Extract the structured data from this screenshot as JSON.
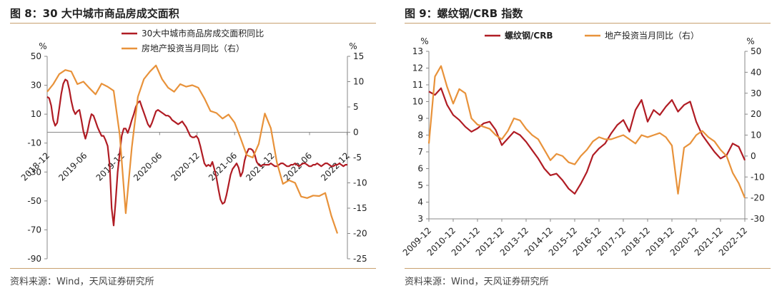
{
  "panels": {
    "left": {
      "title": "图 8：30 大中城市商品房成交面积",
      "source": "资料来源：Wind，天风证券研究所"
    },
    "right": {
      "title": "图 9：螺纹钢/CRB 指数",
      "source": "资料来源：Wind，天风证券研究所"
    }
  },
  "chart_data": [
    {
      "type": "line",
      "title": "图 8：30 大中城市商品房成交面积",
      "y_left": {
        "unit": "%",
        "ticks": [
          50,
          30,
          10,
          -10,
          -30,
          -50,
          -70,
          -90
        ],
        "range": [
          -90,
          50
        ]
      },
      "y_right": {
        "unit": "%",
        "ticks": [
          15,
          10,
          5,
          0,
          -5,
          -10,
          -15,
          -20,
          -25
        ],
        "range": [
          -25,
          15
        ]
      },
      "x_ticks": [
        "2018-12",
        "2019-06",
        "2019-12",
        "2020-06",
        "2020-12",
        "2021-06",
        "2021-12",
        "2022-06",
        "2022-12"
      ],
      "legend": {
        "position": "top",
        "entries": [
          "30大中城市商品房成交面积同比",
          "房地产投资当月同比（右）"
        ]
      },
      "grid": false,
      "series": [
        {
          "name": "30大中城市商品房成交面积同比",
          "axis": "left",
          "color": "#b01c24",
          "x": [
            0,
            0.33,
            0.66,
            1,
            1.33,
            1.66,
            2,
            2.33,
            2.66,
            3,
            3.33,
            3.66,
            4,
            4.33,
            4.66,
            5,
            5.33,
            5.66,
            6,
            6.33,
            6.66,
            7,
            7.33,
            7.66,
            8,
            8.33,
            8.66,
            9,
            9.33,
            9.66,
            10,
            10.33,
            10.66,
            11,
            11.33,
            11.66,
            12,
            12.33,
            12.66,
            13,
            13.33,
            13.66,
            14,
            14.33,
            14.66,
            15,
            15.33,
            15.66,
            16,
            16.33,
            16.66,
            17,
            17.33,
            17.66,
            18,
            18.33,
            18.66,
            19,
            19.33,
            19.66,
            20,
            20.33,
            20.66,
            21,
            21.33,
            21.66,
            22,
            22.33,
            22.66,
            23,
            23.33,
            23.66,
            24,
            24.33,
            24.66,
            25,
            25.33,
            25.66,
            26,
            26.33,
            26.66,
            27,
            27.33,
            27.66,
            28,
            28.33,
            28.66,
            29,
            29.33,
            29.66,
            30,
            30.33,
            30.66,
            31,
            31.33,
            31.66,
            32,
            32.33,
            32.66,
            33,
            33.33,
            33.66,
            34,
            34.33,
            34.66,
            35,
            35.33,
            35.66,
            36,
            36.33,
            36.66,
            37,
            37.33,
            37.66,
            38,
            38.33,
            38.66,
            39,
            39.33,
            39.66,
            40,
            40.33,
            40.66,
            41,
            41.33,
            41.66,
            42,
            42.33,
            42.66,
            43,
            43.33,
            43.66,
            44,
            44.33,
            44.66,
            45,
            45.33,
            45.66,
            46,
            46.33,
            46.66,
            47,
            47.33,
            47.66,
            48,
            48.33,
            48.66,
            49,
            49.33,
            49.66
          ],
          "values": [
            22,
            21,
            16,
            6,
            2,
            4,
            14,
            24,
            31,
            34,
            33,
            27,
            19,
            13,
            10,
            12,
            13,
            6,
            -2,
            -7,
            -2,
            5,
            10,
            9,
            5,
            1,
            -2,
            -5,
            -5,
            -8,
            -12,
            -25,
            -55,
            -67,
            -50,
            -30,
            -17,
            -5,
            0,
            0,
            -3,
            1,
            6,
            10,
            15,
            18,
            19,
            15,
            11,
            7,
            3,
            1,
            4,
            8,
            12,
            13,
            12,
            11,
            10,
            9,
            9,
            8,
            6,
            5,
            4,
            3,
            4,
            5,
            3,
            1,
            -2,
            -5,
            -6,
            -6,
            -5,
            -7,
            -12,
            -18,
            -24,
            -26,
            -25,
            -26,
            -23,
            -28,
            -34,
            -42,
            -49,
            -52,
            -51,
            -46,
            -39,
            -32,
            -28,
            -26,
            -24,
            -27,
            -33,
            -30,
            -22,
            -17,
            -14,
            -14,
            -15,
            -18,
            -23,
            -25,
            -26,
            -25,
            -25,
            -25,
            -25,
            -24,
            -25,
            -26,
            -26,
            -25,
            -24,
            -24,
            -25,
            -26,
            -26,
            -25,
            -25,
            -24,
            -25,
            -26,
            -25,
            -24,
            -24,
            -25,
            -26,
            -26,
            -25,
            -25,
            -24,
            -25,
            -26,
            -25,
            -24,
            -24,
            -25,
            -26,
            -26,
            -25,
            -25,
            -24,
            -25,
            -26,
            -25,
            -25
          ]
        },
        {
          "name": "房地产投资当月同比（右）",
          "axis": "right",
          "color": "#e8923a",
          "x": [
            0,
            1,
            2,
            3,
            4,
            5,
            6,
            7,
            8,
            9,
            10,
            11,
            12,
            13,
            14,
            15,
            16,
            17,
            18,
            19,
            20,
            21,
            22,
            23,
            24,
            25,
            26,
            27,
            28,
            29,
            30,
            31,
            32,
            33,
            34,
            35,
            36,
            37,
            38,
            39,
            40,
            41,
            42,
            43,
            44,
            45,
            46,
            47,
            48
          ],
          "values": [
            8,
            9.5,
            11.5,
            12.3,
            12,
            9.5,
            10,
            8.7,
            7.5,
            9.6,
            9,
            8.2,
            -0.5,
            -16,
            -3,
            7,
            10.5,
            12,
            13.2,
            10.5,
            8.8,
            8,
            9.5,
            9,
            9.3,
            8.8,
            6.7,
            4.2,
            3.8,
            2.7,
            3.5,
            1.9,
            -1.2,
            -4.5,
            -5,
            -2.3,
            3.7,
            0.8,
            -6,
            -10.2,
            -9.5,
            -10,
            -12.7,
            -13,
            -12.5,
            -12.6,
            -12,
            -16.5,
            -20
          ]
        }
      ]
    },
    {
      "type": "line",
      "title": "图 9：螺纹钢/CRB 指数",
      "y_left": {
        "unit": "%",
        "ticks": [
          13,
          12,
          11,
          10,
          9,
          8,
          7,
          6,
          5,
          4,
          3
        ],
        "range": [
          3,
          13
        ]
      },
      "y_right": {
        "unit": "%",
        "ticks": [
          50,
          40,
          30,
          20,
          10,
          0,
          -10,
          -20,
          -30
        ],
        "range": [
          -30,
          50
        ]
      },
      "x_ticks": [
        "2009-12",
        "2010-12",
        "2011-12",
        "2012-12",
        "2013-12",
        "2014-12",
        "2015-12",
        "2016-12",
        "2017-12",
        "2018-12",
        "2019-12",
        "2020-12",
        "2021-12",
        "2022-12"
      ],
      "legend": {
        "position": "top",
        "entries": [
          "螺纹钢/CRB",
          "地产投资当月同比（右）"
        ]
      },
      "grid": false,
      "series": [
        {
          "name": "螺纹钢/CRB",
          "axis": "left",
          "color": "#b01c24",
          "x": [
            0,
            0.25,
            0.5,
            0.75,
            1,
            1.25,
            1.5,
            1.75,
            2,
            2.25,
            2.5,
            2.75,
            3,
            3.25,
            3.5,
            3.75,
            4,
            4.25,
            4.5,
            4.75,
            5,
            5.25,
            5.5,
            5.75,
            6,
            6.25,
            6.5,
            6.75,
            7,
            7.25,
            7.5,
            7.75,
            8,
            8.25,
            8.5,
            8.75,
            9,
            9.25,
            9.5,
            9.75,
            10,
            10.25,
            10.5,
            10.75,
            11,
            11.25,
            11.5,
            11.75,
            12,
            12.25,
            12.5,
            12.75,
            13
          ],
          "values": [
            10.6,
            10.4,
            10.8,
            9.8,
            9.2,
            8.9,
            8.5,
            8.2,
            8.4,
            8.7,
            8.8,
            8.3,
            7.4,
            7.8,
            8.2,
            8.0,
            7.6,
            7.1,
            6.6,
            6.0,
            5.6,
            5.7,
            5.3,
            4.8,
            4.5,
            5.1,
            5.8,
            6.8,
            7.2,
            7.5,
            8.1,
            8.6,
            8.9,
            8.2,
            9.5,
            10.1,
            8.8,
            9.5,
            9.2,
            9.7,
            10.1,
            9.4,
            9.8,
            10.0,
            8.8,
            8.0,
            7.5,
            7.0,
            6.6,
            6.8,
            7.5,
            7.3,
            6.5
          ]
        },
        {
          "name": "地产投资当月同比（右）",
          "axis": "right",
          "color": "#e8923a",
          "x": [
            0,
            0.25,
            0.5,
            0.75,
            1,
            1.25,
            1.5,
            1.75,
            2,
            2.25,
            2.5,
            2.75,
            3,
            3.25,
            3.5,
            3.75,
            4,
            4.25,
            4.5,
            4.75,
            5,
            5.25,
            5.5,
            5.75,
            6,
            6.25,
            6.5,
            6.75,
            7,
            7.25,
            7.5,
            7.75,
            8,
            8.25,
            8.5,
            8.75,
            9,
            9.25,
            9.5,
            9.75,
            10,
            10.25,
            10.5,
            10.75,
            11,
            11.25,
            11.5,
            11.75,
            12,
            12.25,
            12.5,
            12.75,
            13
          ],
          "values": [
            6,
            38,
            43,
            33,
            25,
            32,
            30,
            18,
            15,
            14,
            13,
            10,
            8,
            12,
            18,
            17,
            13,
            10,
            8,
            3,
            -2,
            1,
            0,
            -3,
            -4,
            0,
            3,
            7,
            9,
            8,
            8,
            9,
            10,
            8,
            6,
            10,
            9,
            10,
            11,
            9,
            5,
            -18,
            4,
            6,
            10,
            12,
            9,
            7,
            3,
            0,
            -8,
            -13,
            -20
          ]
        }
      ]
    }
  ]
}
